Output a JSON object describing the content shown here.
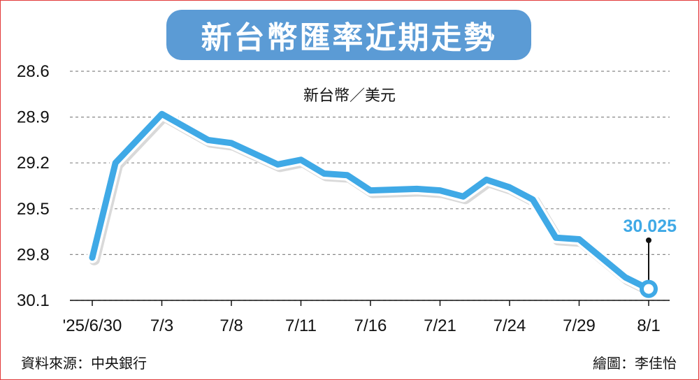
{
  "title": "新台幣匯率近期走勢",
  "source_note": "資料來源：中央銀行",
  "credit_note": "繪圖：李佳怡",
  "colors": {
    "line": "#3fa9e6",
    "title_bg": "#5b9bd5",
    "frame": "#e23a3a",
    "grid": "#888888"
  },
  "chart_data": {
    "type": "line",
    "unit_label": "新台幣／美元",
    "y_ticks": [
      "28.6",
      "28.9",
      "29.2",
      "29.5",
      "29.8",
      "30.1"
    ],
    "y_range_top": 28.6,
    "y_range_bottom": 30.1,
    "y_inverted": true,
    "x_tick_labels": [
      "'25/6/30",
      "7/3",
      "7/8",
      "7/11",
      "7/16",
      "7/21",
      "7/24",
      "7/29",
      "8/1"
    ],
    "x_tick_slots": [
      0,
      3,
      6,
      9,
      12,
      15,
      18,
      21,
      24
    ],
    "x_slot_count": 25,
    "series": [
      {
        "slots": [
          0,
          1,
          3,
          5,
          6,
          8,
          9,
          10,
          11,
          12,
          14,
          15,
          16,
          17,
          18,
          19,
          20,
          21,
          23,
          24
        ],
        "values": [
          29.82,
          29.2,
          28.88,
          29.05,
          29.07,
          29.21,
          29.18,
          29.27,
          29.28,
          29.38,
          29.37,
          29.38,
          29.42,
          29.31,
          29.36,
          29.44,
          29.69,
          29.7,
          29.95,
          30.025
        ]
      }
    ],
    "last_value_label": "30.025",
    "grid": true
  }
}
